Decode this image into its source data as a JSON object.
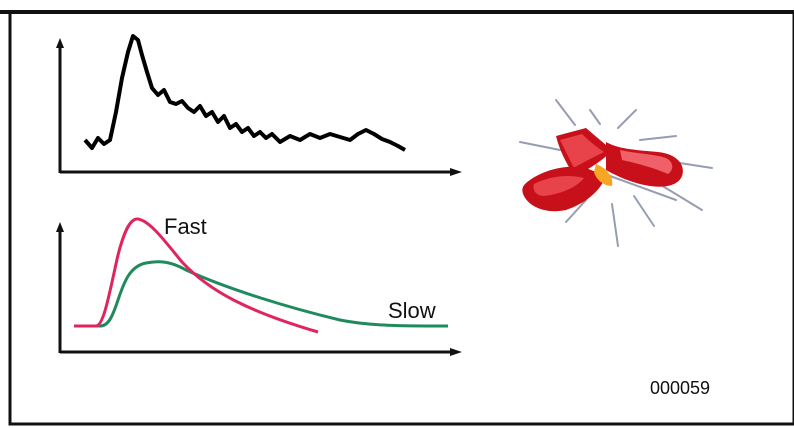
{
  "figure": {
    "id_code": "000059"
  },
  "bottom_chart": {
    "series": [
      {
        "name": "Fast",
        "color": "#e0245e"
      },
      {
        "name": "Slow",
        "color": "#1f8a5b"
      }
    ]
  },
  "colors": {
    "frame": "#111111",
    "top_trace": "#000000",
    "fast": "#e0245e",
    "slow": "#1f8a5b",
    "molecule": "#d8141c"
  },
  "icons": [
    "molecule-illustration"
  ]
}
